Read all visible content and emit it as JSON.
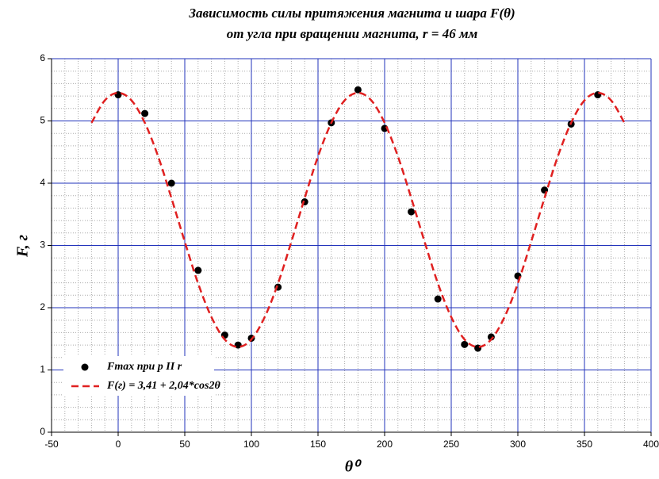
{
  "chart_data": {
    "type": "scatter",
    "title": [
      "Зависимость силы притяжения магнита и шара F(θ)",
      "от угла при вращении магнита, r = 46 мм"
    ],
    "xlabel": "θ⁰",
    "ylabel": "F, г",
    "xlim": [
      -50,
      400
    ],
    "xticks": [
      -50,
      0,
      50,
      100,
      150,
      200,
      250,
      300,
      350,
      400
    ],
    "ylim": [
      0,
      6
    ],
    "yticks": [
      0,
      1,
      2,
      3,
      4,
      5,
      6
    ],
    "grid": true,
    "minor_grid": true,
    "legend": "lower left",
    "series": [
      {
        "name": "Fmax при p II r",
        "color": "#000000",
        "mode": "markers",
        "x": [
          0,
          20,
          40,
          60,
          80,
          90,
          100,
          120,
          140,
          160,
          180,
          200,
          220,
          240,
          260,
          270,
          280,
          300,
          320,
          340,
          360
        ],
        "values": [
          5.42,
          5.12,
          4.0,
          2.6,
          1.56,
          1.4,
          1.51,
          2.33,
          3.7,
          4.97,
          5.5,
          4.88,
          3.54,
          2.14,
          1.41,
          1.35,
          1.53,
          2.51,
          3.89,
          4.95,
          5.42
        ]
      },
      {
        "name": "F(г) = 3,41 + 2,04*cos2θ",
        "color": "#e02020",
        "mode": "dashed-line",
        "x": [
          -20,
          -10,
          0,
          10,
          20,
          30,
          40,
          50,
          60,
          70,
          80,
          90,
          100,
          110,
          120,
          130,
          140,
          150,
          160,
          170,
          180,
          190,
          200,
          210,
          220,
          230,
          240,
          250,
          260,
          270,
          280,
          290,
          300,
          310,
          320,
          330,
          340,
          350,
          360,
          370,
          380
        ],
        "values": [
          4.97,
          5.33,
          5.45,
          5.33,
          4.97,
          4.43,
          3.76,
          3.06,
          2.39,
          1.85,
          1.49,
          1.37,
          1.49,
          1.85,
          2.39,
          3.06,
          3.76,
          4.43,
          4.97,
          5.33,
          5.45,
          5.33,
          4.97,
          4.43,
          3.76,
          3.06,
          2.39,
          1.85,
          1.49,
          1.37,
          1.49,
          1.85,
          2.39,
          3.06,
          3.76,
          4.43,
          4.97,
          5.33,
          5.45,
          5.33,
          4.97
        ]
      }
    ]
  }
}
